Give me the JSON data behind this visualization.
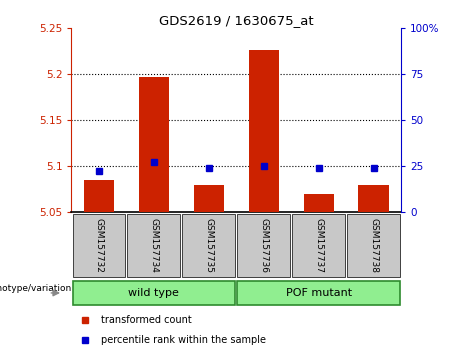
{
  "title": "GDS2619 / 1630675_at",
  "samples": [
    "GSM157732",
    "GSM157734",
    "GSM157735",
    "GSM157736",
    "GSM157737",
    "GSM157738"
  ],
  "bar_values": [
    5.085,
    5.197,
    5.08,
    5.226,
    5.07,
    5.08
  ],
  "bar_baseline": 5.05,
  "percentile_values": [
    5.095,
    5.105,
    5.098,
    5.1,
    5.098,
    5.098
  ],
  "ylim": [
    5.05,
    5.25
  ],
  "yticks": [
    5.05,
    5.1,
    5.15,
    5.2,
    5.25
  ],
  "ytick_labels": [
    "5.05",
    "5.1",
    "5.15",
    "5.2",
    "5.25"
  ],
  "y2lim": [
    0,
    100
  ],
  "y2ticks": [
    0,
    25,
    50,
    75,
    100
  ],
  "y2tick_labels": [
    "0",
    "25",
    "50",
    "75",
    "100%"
  ],
  "grid_yticks": [
    5.1,
    5.15,
    5.2
  ],
  "bar_color": "#CC2200",
  "dot_color": "#0000CC",
  "bar_width": 0.55,
  "legend_items": [
    "transformed count",
    "percentile rank within the sample"
  ],
  "legend_colors": [
    "#CC2200",
    "#0000CC"
  ],
  "genotype_label": "genotype/variation",
  "tick_label_area_color": "#C8C8C8",
  "group_label_color": "#90EE90",
  "group_border_color": "#2E8B2E",
  "wt_label": "wild type",
  "pof_label": "POF mutant"
}
